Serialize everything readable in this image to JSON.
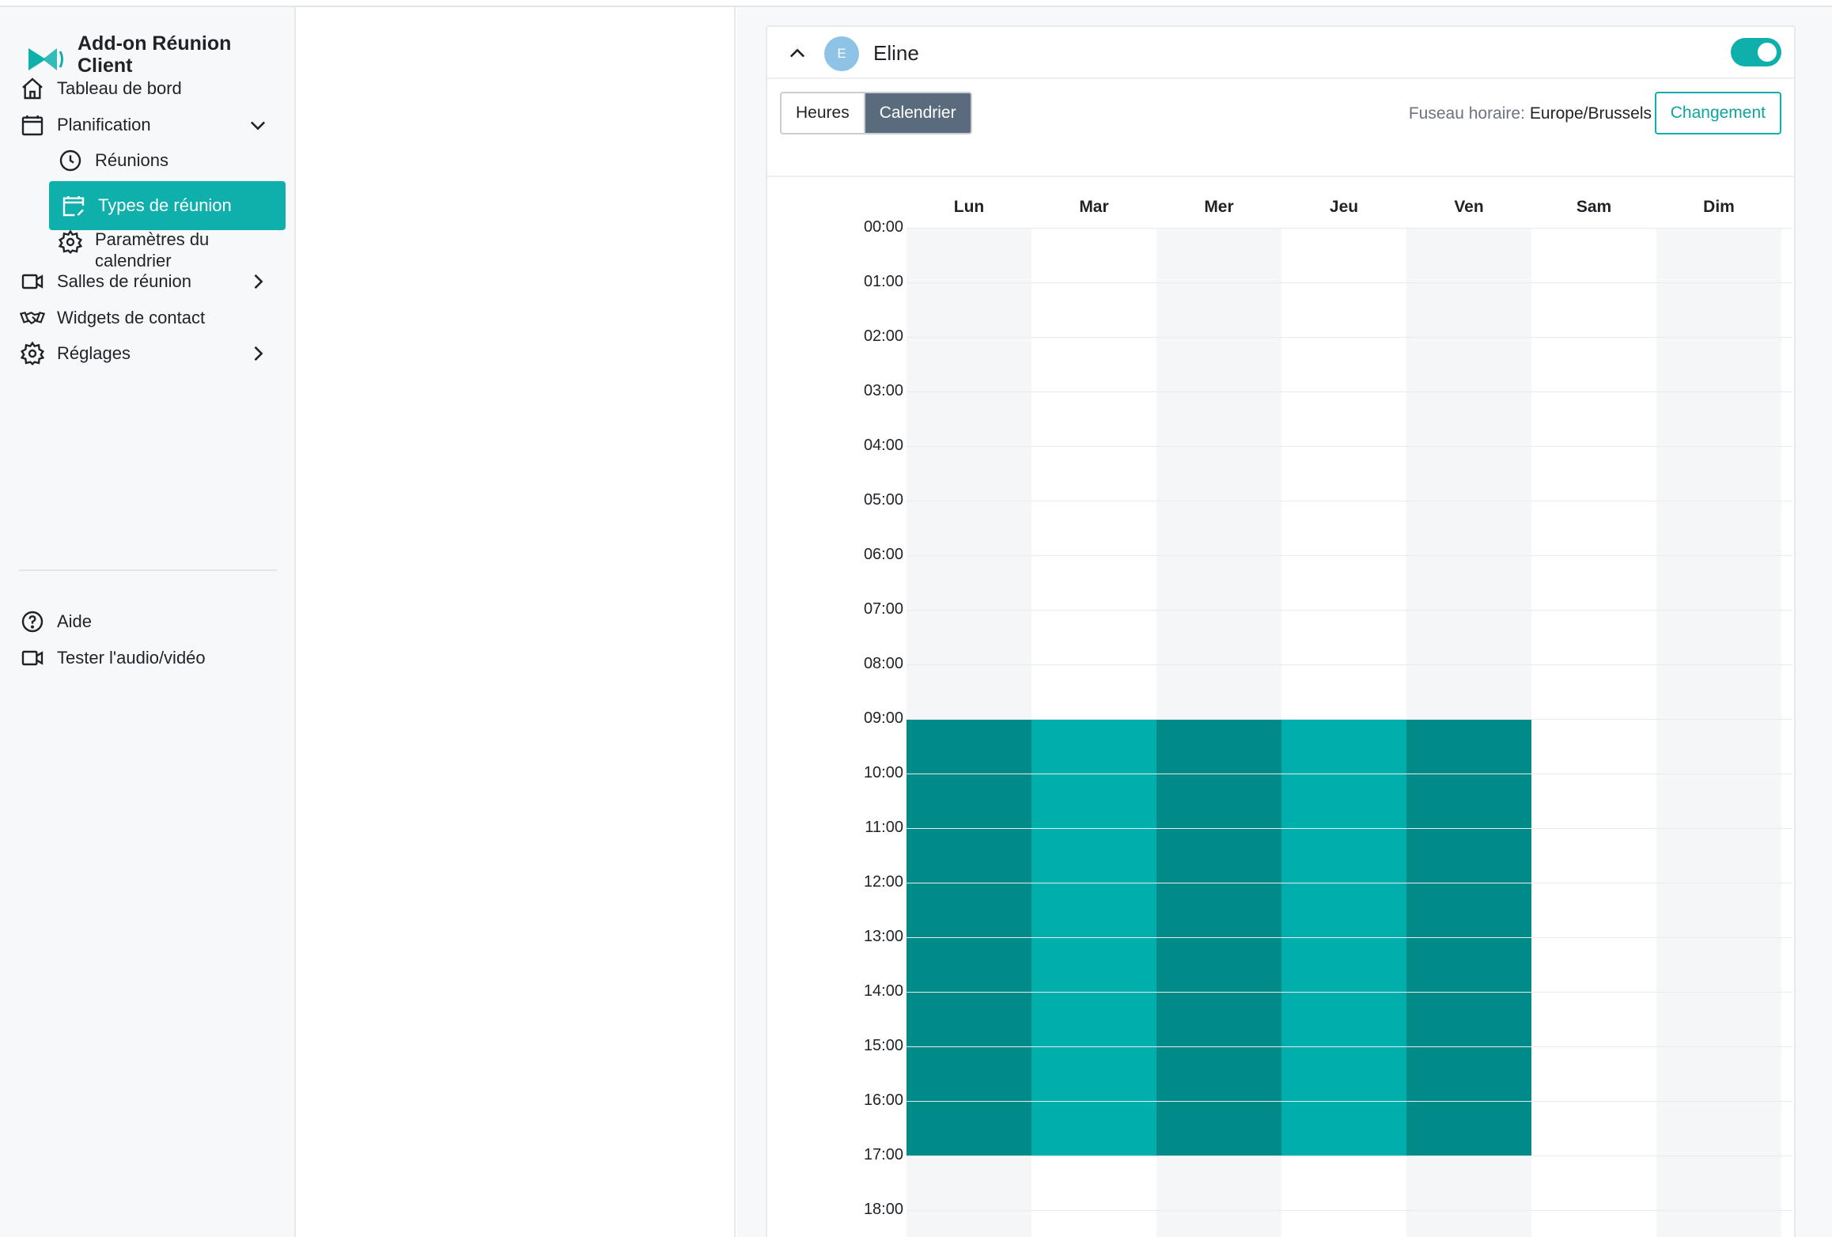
{
  "app": {
    "name": "Add-on Réunion Client"
  },
  "sidebar": {
    "items": [
      {
        "label": "Tableau de bord",
        "icon": "home-icon"
      },
      {
        "label": "Planification",
        "icon": "calendar-icon"
      },
      {
        "label": "Réunions",
        "icon": "clock-icon"
      },
      {
        "label": "Types de réunion",
        "icon": "calendar-edit-icon"
      },
      {
        "label": "Paramètres du calendrier",
        "icon": "gear-icon"
      },
      {
        "label": "Salles de réunion",
        "icon": "video-icon"
      },
      {
        "label": "Widgets de contact",
        "icon": "handshake-icon"
      },
      {
        "label": "Réglages",
        "icon": "gear-icon"
      },
      {
        "label": "Aide",
        "icon": "help-icon"
      },
      {
        "label": "Tester l'audio/vidéo",
        "icon": "video-icon"
      }
    ]
  },
  "card": {
    "avatar_letter": "E",
    "user_name": "Eline",
    "toggle_on": true,
    "tabs": [
      "Heures",
      "Calendrier"
    ],
    "active_tab": "Calendrier",
    "timezone_label": "Fuseau horaire:",
    "timezone_value": "Europe/Brussels",
    "change_label": "Changement"
  },
  "calendar": {
    "days": [
      "Lun",
      "Mar",
      "Mer",
      "Jeu",
      "Ven",
      "Sam",
      "Dim"
    ],
    "hours": [
      "00:00",
      "01:00",
      "02:00",
      "03:00",
      "04:00",
      "05:00",
      "06:00",
      "07:00",
      "08:00",
      "09:00",
      "10:00",
      "11:00",
      "12:00",
      "13:00",
      "14:00",
      "15:00",
      "16:00",
      "17:00",
      "18:00"
    ],
    "availability": [
      {
        "day": "Lun",
        "start": "09:00",
        "end": "17:00"
      },
      {
        "day": "Mar",
        "start": "09:00",
        "end": "17:00"
      },
      {
        "day": "Mer",
        "start": "09:00",
        "end": "17:00"
      },
      {
        "day": "Jeu",
        "start": "09:00",
        "end": "17:00"
      },
      {
        "day": "Ven",
        "start": "09:00",
        "end": "17:00"
      }
    ],
    "colors": {
      "dark": "#008b88",
      "light": "#00aeac",
      "accent": "#0fb0ac"
    }
  }
}
